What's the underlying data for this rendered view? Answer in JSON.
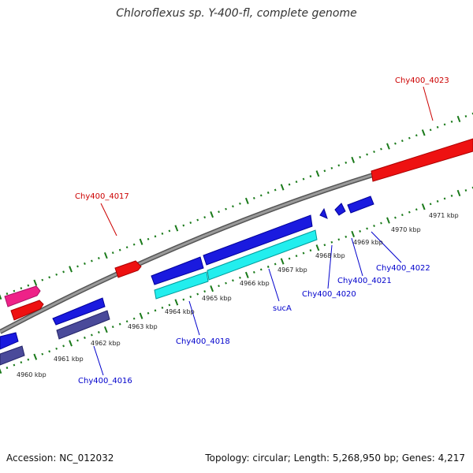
{
  "title": "Chloroflexus sp. Y-400-fl, complete genome",
  "footer": {
    "accession": "Accession: NC_012032",
    "info": "Topology: circular; Length: 5,268,950 bp; Genes: 4,217"
  },
  "colors": {
    "backbone": "#8a8a8a",
    "tick": "#1a7a1a",
    "forward_label": "#cc0000",
    "reverse_label": "#0000cc",
    "red_gene": "#ee1111",
    "pink_gene": "#ee2288",
    "blue_gene": "#1a1adf",
    "cyan_gene": "#22eeee",
    "slate_gene": "#4a4a9a"
  },
  "scale_labels": [
    "4960 kbp",
    "4961 kbp",
    "4962 kbp",
    "4963 kbp",
    "4964 kbp",
    "4965 kbp",
    "4966 kbp",
    "4967 kbp",
    "4968 kbp",
    "4969 kbp",
    "4970 kbp",
    "4971 kbp"
  ],
  "gene_labels": {
    "forward": [
      "Chy400_4017",
      "Chy400_4023"
    ],
    "reverse": [
      "Chy400_4016",
      "Chy400_4018",
      "sucA",
      "Chy400_4020",
      "Chy400_4021",
      "Chy400_4022"
    ]
  }
}
